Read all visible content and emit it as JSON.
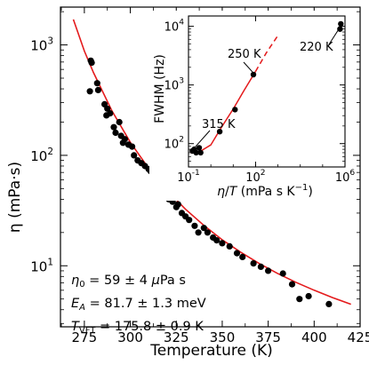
{
  "chart_data": [
    {
      "type": "scatter",
      "xlabel": "Temperature (K)",
      "ylabel": "η (mPa·s)",
      "xlim": [
        262,
        425
      ],
      "ylim": [
        2.8,
        2200
      ],
      "yscale": "log",
      "xticks": [
        "275",
        "300",
        "325",
        "350",
        "375",
        "400",
        "425"
      ],
      "yticks": [
        "10^1",
        "10^2",
        "10^3"
      ],
      "series": [
        {
          "style": "points",
          "color": "#000000",
          "x": [
            278.5,
            279,
            278,
            282,
            282.5,
            286,
            287,
            287.5,
            289,
            291,
            292,
            294,
            295,
            296,
            297,
            299,
            301,
            302,
            304,
            306,
            308,
            310,
            311,
            313,
            314,
            316,
            318,
            320,
            321,
            323,
            325,
            326,
            328,
            330,
            332,
            335,
            337,
            340,
            342,
            345,
            347,
            350,
            354,
            358,
            361,
            367,
            371,
            375,
            383,
            388,
            392,
            397,
            408
          ],
          "y": [
            720,
            690,
            380,
            450,
            390,
            290,
            230,
            265,
            240,
            180,
            160,
            200,
            150,
            130,
            140,
            125,
            120,
            100,
            90,
            85,
            80,
            75,
            72,
            60,
            55,
            52,
            48,
            44,
            40,
            38,
            34,
            36,
            30,
            28,
            26,
            23,
            20,
            22,
            20,
            18,
            17,
            16,
            15,
            13,
            12,
            10.5,
            9.8,
            9,
            8.5,
            6.8,
            5,
            5.3,
            4.5
          ]
        },
        {
          "style": "line",
          "color": "#e41a1c",
          "name": "",
          "x": [
            269,
            275,
            280,
            290,
            300,
            310,
            320,
            330,
            340,
            350,
            360,
            370,
            380,
            390,
            400,
            410,
            420
          ],
          "y": [
            1700,
            880,
            560,
            253,
            131,
            76.2,
            48.1,
            32.5,
            23.2,
            17.2,
            13.3,
            10.5,
            8.54,
            7.1,
            6.0,
            5.15,
            4.48
          ]
        }
      ],
      "annotations": [
        "$\\eta_0 = 59 \\pm 4~\\mu$Pa s",
        "$E_A = 81.7 \\pm 1.3$ meV",
        "$T_{\\mathrm{VFT}} = 175.8 \\pm 0.9$ K"
      ]
    },
    {
      "type": "scatter",
      "xlabel": "η/T (mPa s K⁻¹)",
      "ylabel": "FWHM (Hz)",
      "xscale": "log",
      "yscale": "log",
      "xlim": [
        0.1,
        1000000
      ],
      "ylim": [
        40,
        15000
      ],
      "xticks": [
        "10^-1",
        "10^2",
        "10^6"
      ],
      "yticks": [
        "10^2",
        "10^3",
        "10^4"
      ],
      "series": [
        {
          "style": "points",
          "color": "#000000",
          "x": [
            0.15,
            0.18,
            0.22,
            0.3,
            0.35,
            2.5,
            12,
            80,
            600000,
            650000
          ],
          "y": [
            75,
            80,
            70,
            85,
            70,
            160,
            380,
            1500,
            9000,
            11000
          ]
        },
        {
          "style": "line",
          "color": "#e41a1c",
          "x": [
            0.12,
            0.3,
            1,
            3,
            10,
            30,
            100
          ],
          "y": [
            70,
            72,
            95,
            190,
            390,
            800,
            1700
          ]
        },
        {
          "style": "dashed",
          "color": "#e41a1c",
          "x": [
            100,
            300,
            1000
          ],
          "y": [
            1700,
            3500,
            7000
          ]
        }
      ],
      "annotations": [
        "315 K",
        "250 K",
        "220 K"
      ]
    }
  ]
}
